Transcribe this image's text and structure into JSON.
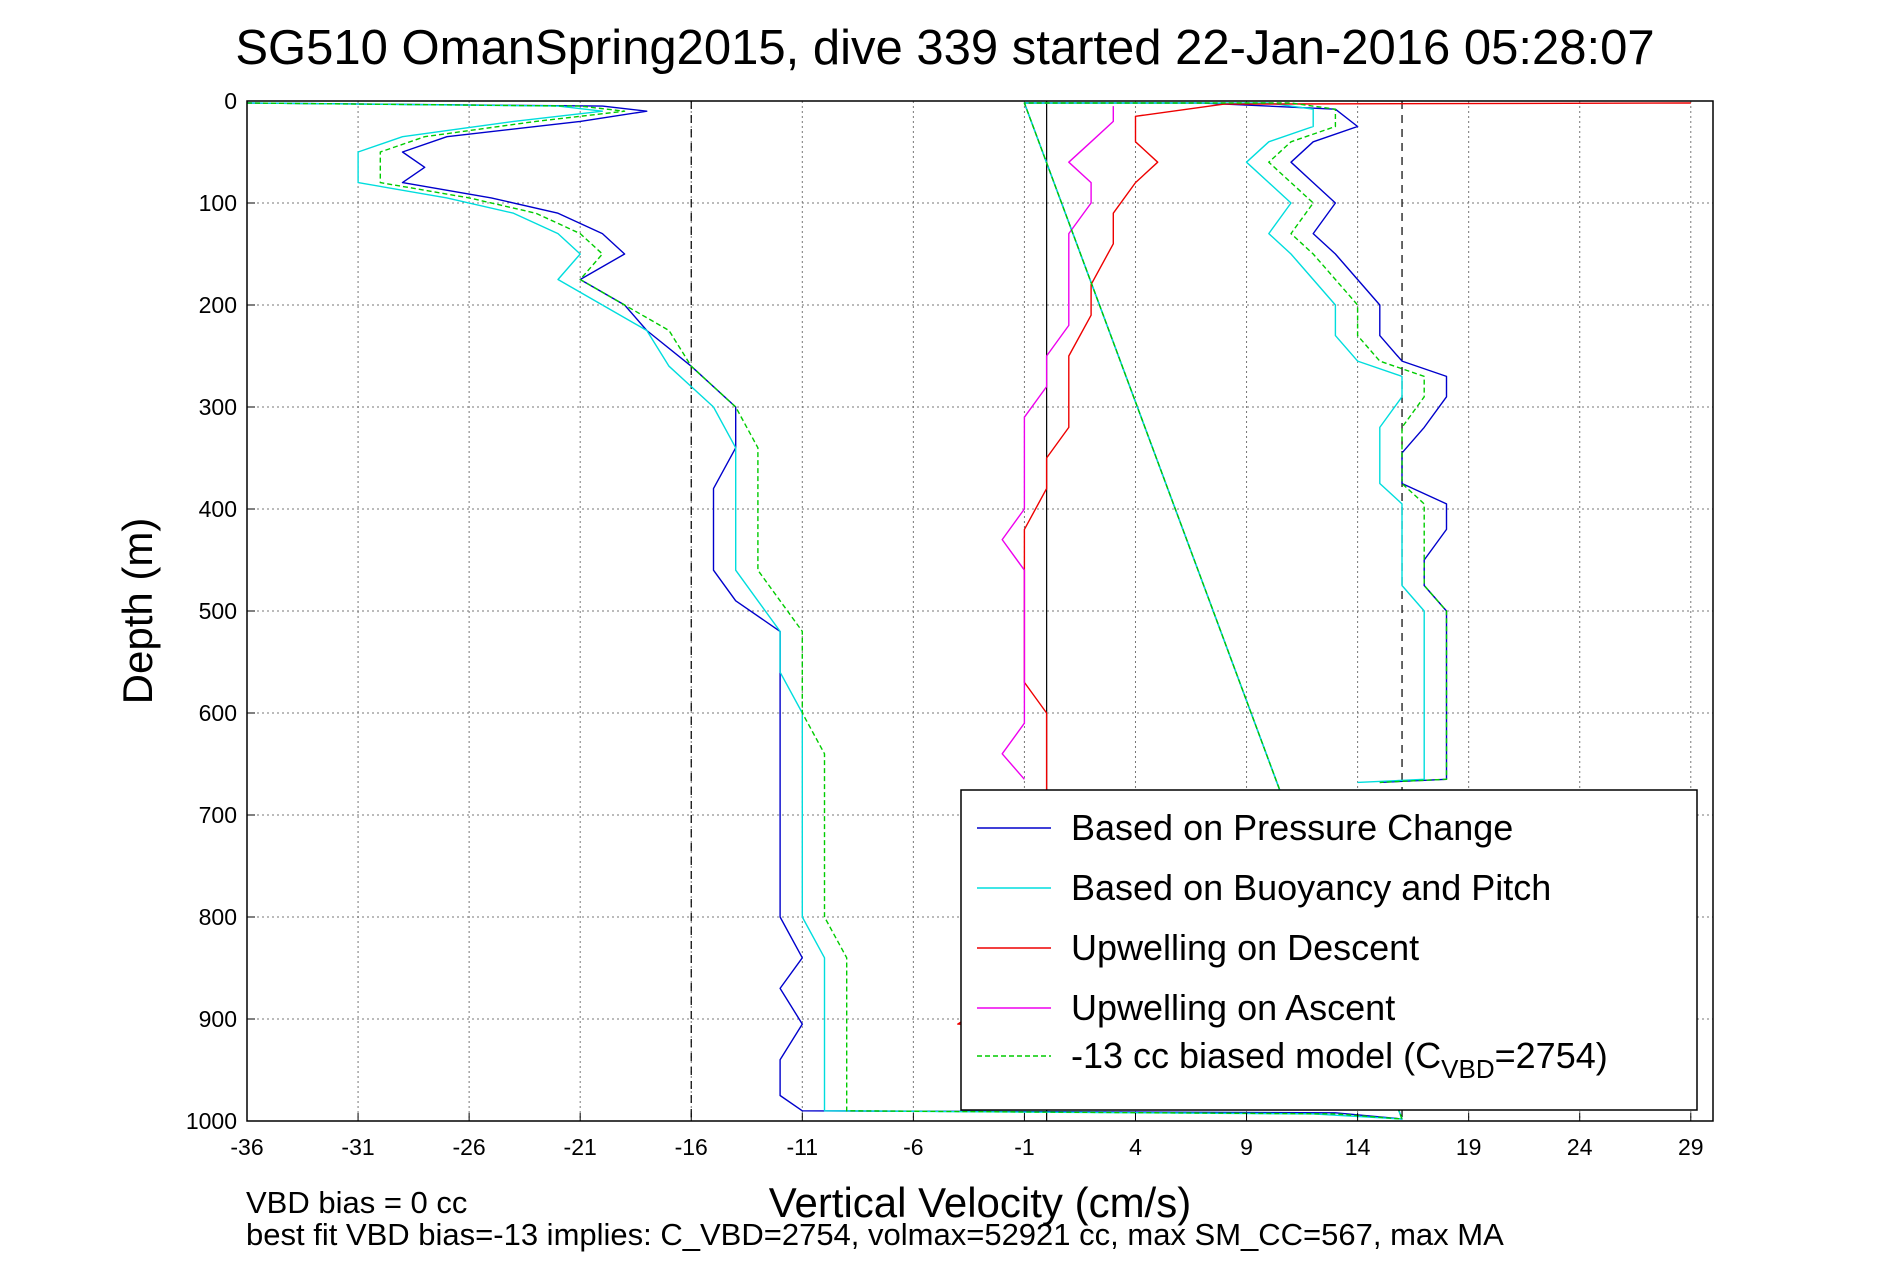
{
  "title": "SG510 OmanSpring2015, dive 339 started 22-Jan-2016 05:28:07",
  "footer": {
    "line1": "VBD bias = 0 cc",
    "line2": "best fit VBD bias=-13 implies: C_VBD=2754, volmax=52921 cc, max SM_CC=567, max MA"
  },
  "chart_data": {
    "type": "line",
    "title": "SG510 OmanSpring2015, dive 339 started 22-Jan-2016 05:28:07",
    "xlabel": "Vertical Velocity (cm/s)",
    "ylabel": "Depth (m)",
    "xlim": [
      -36,
      30
    ],
    "ylim": [
      0,
      1000
    ],
    "y_reversed": true,
    "grid": true,
    "legend_position": "bottom-right",
    "x_ticks": [
      -36,
      -31,
      -26,
      -21,
      -16,
      -11,
      -6,
      -1,
      4,
      9,
      14,
      19,
      24,
      29
    ],
    "y_ticks": [
      0,
      100,
      200,
      300,
      400,
      500,
      600,
      700,
      800,
      900,
      1000
    ],
    "reference_lines": {
      "dashed_x": [
        -16,
        16
      ],
      "solid_x": [
        0
      ]
    },
    "series": [
      {
        "name": "Based on Pressure Change",
        "color": "#0000cc",
        "style": "solid",
        "points": [
          [
            -36,
            2
          ],
          [
            -20,
            5
          ],
          [
            -18,
            10
          ],
          [
            -21,
            20
          ],
          [
            -27,
            35
          ],
          [
            -29,
            50
          ],
          [
            -28,
            65
          ],
          [
            -29,
            80
          ],
          [
            -25,
            95
          ],
          [
            -22,
            110
          ],
          [
            -20,
            130
          ],
          [
            -19,
            150
          ],
          [
            -21,
            175
          ],
          [
            -19,
            200
          ],
          [
            -18,
            225
          ],
          [
            -16,
            260
          ],
          [
            -14,
            300
          ],
          [
            -14,
            340
          ],
          [
            -15,
            380
          ],
          [
            -15,
            420
          ],
          [
            -15,
            460
          ],
          [
            -14,
            490
          ],
          [
            -12,
            520
          ],
          [
            -12,
            560
          ],
          [
            -12,
            600
          ],
          [
            -12,
            640
          ],
          [
            -12,
            680
          ],
          [
            -12,
            720
          ],
          [
            -12,
            760
          ],
          [
            -12,
            800
          ],
          [
            -11,
            840
          ],
          [
            -12,
            870
          ],
          [
            -11,
            905
          ],
          [
            -12,
            940
          ],
          [
            -12,
            975
          ],
          [
            -11,
            990
          ],
          [
            13,
            992
          ],
          [
            16,
            998
          ],
          [
            -1,
            2
          ],
          [
            7,
            2
          ],
          [
            13,
            8
          ],
          [
            14,
            25
          ],
          [
            12,
            40
          ],
          [
            11,
            60
          ],
          [
            12,
            80
          ],
          [
            13,
            100
          ],
          [
            12,
            130
          ],
          [
            13,
            150
          ],
          [
            14,
            175
          ],
          [
            15,
            200
          ],
          [
            15,
            230
          ],
          [
            16,
            255
          ],
          [
            18,
            270
          ],
          [
            18,
            290
          ],
          [
            17,
            320
          ],
          [
            16,
            345
          ],
          [
            16,
            375
          ],
          [
            18,
            395
          ],
          [
            18,
            420
          ],
          [
            17,
            450
          ],
          [
            17,
            475
          ],
          [
            18,
            500
          ],
          [
            18,
            530
          ],
          [
            18,
            560
          ],
          [
            18,
            590
          ],
          [
            18,
            615
          ],
          [
            18,
            640
          ],
          [
            18,
            665
          ],
          [
            15,
            668
          ]
        ]
      },
      {
        "name": "Based on Buoyancy and Pitch",
        "color": "#00dddd",
        "style": "solid",
        "points": [
          [
            -36,
            2
          ],
          [
            -22,
            5
          ],
          [
            -20,
            10
          ],
          [
            -24,
            20
          ],
          [
            -29,
            35
          ],
          [
            -31,
            50
          ],
          [
            -31,
            65
          ],
          [
            -31,
            80
          ],
          [
            -27,
            95
          ],
          [
            -24,
            110
          ],
          [
            -22,
            130
          ],
          [
            -21,
            150
          ],
          [
            -22,
            175
          ],
          [
            -20,
            200
          ],
          [
            -18,
            225
          ],
          [
            -17,
            260
          ],
          [
            -15,
            300
          ],
          [
            -14,
            340
          ],
          [
            -14,
            380
          ],
          [
            -14,
            420
          ],
          [
            -14,
            460
          ],
          [
            -13,
            490
          ],
          [
            -12,
            520
          ],
          [
            -12,
            560
          ],
          [
            -11,
            600
          ],
          [
            -11,
            640
          ],
          [
            -11,
            680
          ],
          [
            -11,
            720
          ],
          [
            -11,
            760
          ],
          [
            -11,
            800
          ],
          [
            -10,
            840
          ],
          [
            -10,
            870
          ],
          [
            -10,
            905
          ],
          [
            -10,
            940
          ],
          [
            -10,
            975
          ],
          [
            -10,
            990
          ],
          [
            12,
            993
          ],
          [
            16,
            998
          ],
          [
            -1,
            2
          ],
          [
            10,
            2
          ],
          [
            12,
            8
          ],
          [
            12,
            25
          ],
          [
            10,
            40
          ],
          [
            9,
            60
          ],
          [
            10,
            80
          ],
          [
            11,
            100
          ],
          [
            10,
            130
          ],
          [
            11,
            150
          ],
          [
            12,
            175
          ],
          [
            13,
            200
          ],
          [
            13,
            230
          ],
          [
            14,
            255
          ],
          [
            16,
            270
          ],
          [
            16,
            290
          ],
          [
            15,
            320
          ],
          [
            15,
            345
          ],
          [
            15,
            375
          ],
          [
            16,
            395
          ],
          [
            16,
            420
          ],
          [
            16,
            450
          ],
          [
            16,
            475
          ],
          [
            17,
            500
          ],
          [
            17,
            530
          ],
          [
            17,
            560
          ],
          [
            17,
            590
          ],
          [
            17,
            615
          ],
          [
            17,
            640
          ],
          [
            17,
            665
          ],
          [
            14,
            668
          ]
        ]
      },
      {
        "name": "Upwelling on Descent",
        "color": "#ee0000",
        "style": "solid",
        "points": [
          [
            29,
            2
          ],
          [
            8,
            3
          ],
          [
            4,
            15
          ],
          [
            4,
            40
          ],
          [
            5,
            60
          ],
          [
            4,
            80
          ],
          [
            3,
            110
          ],
          [
            3,
            140
          ],
          [
            2,
            180
          ],
          [
            2,
            210
          ],
          [
            1,
            250
          ],
          [
            1,
            290
          ],
          [
            1,
            320
          ],
          [
            0,
            350
          ],
          [
            0,
            380
          ],
          [
            -1,
            420
          ],
          [
            -1,
            450
          ],
          [
            -1,
            480
          ],
          [
            -1,
            510
          ],
          [
            -1,
            540
          ],
          [
            -1,
            570
          ],
          [
            0,
            600
          ],
          [
            0,
            630
          ],
          [
            0,
            660
          ],
          [
            0,
            700
          ],
          [
            0,
            750
          ],
          [
            0,
            800
          ],
          [
            0,
            850
          ],
          [
            -4,
            905
          ],
          [
            0,
            910
          ],
          [
            0,
            950
          ],
          [
            -1,
            985
          ]
        ]
      },
      {
        "name": "Upwelling on Ascent",
        "color": "#ee00ee",
        "style": "solid",
        "points": [
          [
            3,
            5
          ],
          [
            3,
            20
          ],
          [
            2,
            40
          ],
          [
            1,
            60
          ],
          [
            2,
            80
          ],
          [
            2,
            100
          ],
          [
            1,
            130
          ],
          [
            1,
            160
          ],
          [
            1,
            190
          ],
          [
            1,
            220
          ],
          [
            0,
            250
          ],
          [
            0,
            280
          ],
          [
            -1,
            310
          ],
          [
            -1,
            340
          ],
          [
            -1,
            370
          ],
          [
            -1,
            400
          ],
          [
            -2,
            430
          ],
          [
            -1,
            460
          ],
          [
            -1,
            490
          ],
          [
            -1,
            520
          ],
          [
            -1,
            550
          ],
          [
            -1,
            580
          ],
          [
            -1,
            610
          ],
          [
            -2,
            640
          ],
          [
            -1,
            665
          ]
        ]
      },
      {
        "name": "-13 cc biased model (C_VBD=2754)",
        "color": "#00cc00",
        "style": "dashed",
        "points": [
          [
            -36,
            2
          ],
          [
            -21,
            5
          ],
          [
            -19,
            10
          ],
          [
            -23,
            20
          ],
          [
            -28,
            35
          ],
          [
            -30,
            50
          ],
          [
            -30,
            65
          ],
          [
            -30,
            80
          ],
          [
            -26,
            95
          ],
          [
            -23,
            110
          ],
          [
            -21,
            130
          ],
          [
            -20,
            150
          ],
          [
            -21,
            175
          ],
          [
            -19,
            200
          ],
          [
            -17,
            225
          ],
          [
            -16,
            260
          ],
          [
            -14,
            300
          ],
          [
            -13,
            340
          ],
          [
            -13,
            380
          ],
          [
            -13,
            420
          ],
          [
            -13,
            460
          ],
          [
            -12,
            490
          ],
          [
            -11,
            520
          ],
          [
            -11,
            560
          ],
          [
            -11,
            600
          ],
          [
            -10,
            640
          ],
          [
            -10,
            680
          ],
          [
            -10,
            720
          ],
          [
            -10,
            760
          ],
          [
            -10,
            800
          ],
          [
            -9,
            840
          ],
          [
            -9,
            870
          ],
          [
            -9,
            905
          ],
          [
            -9,
            940
          ],
          [
            -9,
            975
          ],
          [
            -9,
            990
          ],
          [
            13,
            993
          ],
          [
            16,
            998
          ],
          [
            -1,
            2
          ],
          [
            11,
            2
          ],
          [
            13,
            8
          ],
          [
            13,
            25
          ],
          [
            11,
            40
          ],
          [
            10,
            60
          ],
          [
            11,
            80
          ],
          [
            12,
            100
          ],
          [
            11,
            130
          ],
          [
            12,
            150
          ],
          [
            13,
            175
          ],
          [
            14,
            200
          ],
          [
            14,
            230
          ],
          [
            15,
            255
          ],
          [
            17,
            270
          ],
          [
            17,
            290
          ],
          [
            16,
            320
          ],
          [
            16,
            345
          ],
          [
            16,
            375
          ],
          [
            17,
            395
          ],
          [
            17,
            420
          ],
          [
            17,
            450
          ],
          [
            17,
            475
          ],
          [
            18,
            500
          ],
          [
            18,
            530
          ],
          [
            18,
            560
          ],
          [
            18,
            590
          ],
          [
            18,
            615
          ],
          [
            18,
            640
          ],
          [
            18,
            665
          ],
          [
            15,
            668
          ]
        ]
      }
    ]
  }
}
